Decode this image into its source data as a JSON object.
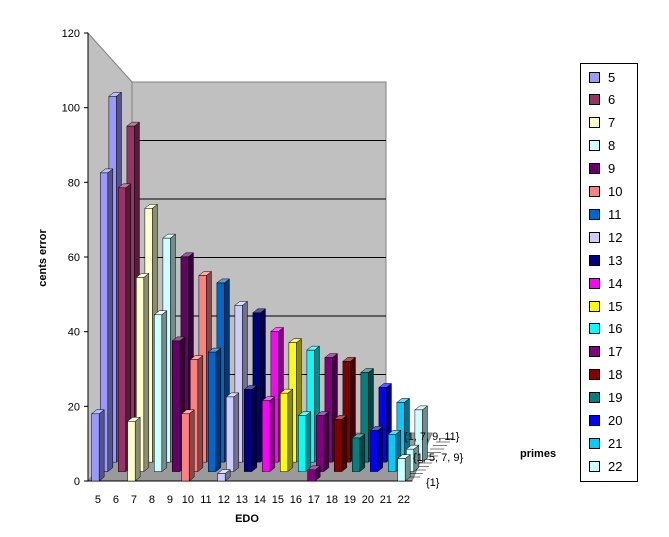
{
  "chart_data": {
    "type": "bar",
    "variant": "3d-clustered",
    "title": "",
    "xlabel": "EDO",
    "ylabel": "cents error",
    "zlabel": "primes",
    "ylim": [
      0,
      120
    ],
    "yticks": [
      "0",
      "20",
      "40",
      "60",
      "80",
      "100",
      "120"
    ],
    "grid": true,
    "legend_position": "right",
    "categories": [
      "5",
      "6",
      "7",
      "8",
      "9",
      "10",
      "11",
      "12",
      "13",
      "14",
      "15",
      "16",
      "17",
      "18",
      "19",
      "20",
      "21",
      "22"
    ],
    "colors": [
      "#9999ff",
      "#993366",
      "#ffffcc",
      "#ccffff",
      "#660066",
      "#ff8080",
      "#0066cc",
      "#ccccff",
      "#000080",
      "#ff00ff",
      "#ffff00",
      "#00ffff",
      "#800080",
      "#800000",
      "#008080",
      "#0000ff",
      "#00ccff",
      "#ccffff"
    ],
    "depth_labels": [
      "{1}",
      "{1, 5, 7, 9}",
      "{1, 7, 9, 11}"
    ],
    "series": [
      {
        "name": "{1}",
        "values": [
          18,
          0,
          16,
          0,
          0,
          18,
          0,
          2,
          0,
          0,
          0,
          0,
          3,
          0,
          0,
          0,
          0,
          6
        ]
      },
      {
        "name": "{1, 5, 7, 9}",
        "values": [
          80,
          76,
          52,
          42,
          35,
          30,
          32,
          20,
          22,
          19,
          21,
          15,
          15,
          14,
          9,
          11,
          10,
          6
        ]
      },
      {
        "name": "{1, 7, 9, 11}",
        "values": [
          98,
          90,
          68,
          60,
          55,
          50,
          48,
          42,
          40,
          35,
          32,
          30,
          28,
          27,
          24,
          20,
          16,
          14
        ]
      }
    ],
    "legend": [
      "5",
      "6",
      "7",
      "8",
      "9",
      "10",
      "11",
      "12",
      "13",
      "14",
      "15",
      "16",
      "17",
      "18",
      "19",
      "20",
      "21",
      "22"
    ]
  }
}
